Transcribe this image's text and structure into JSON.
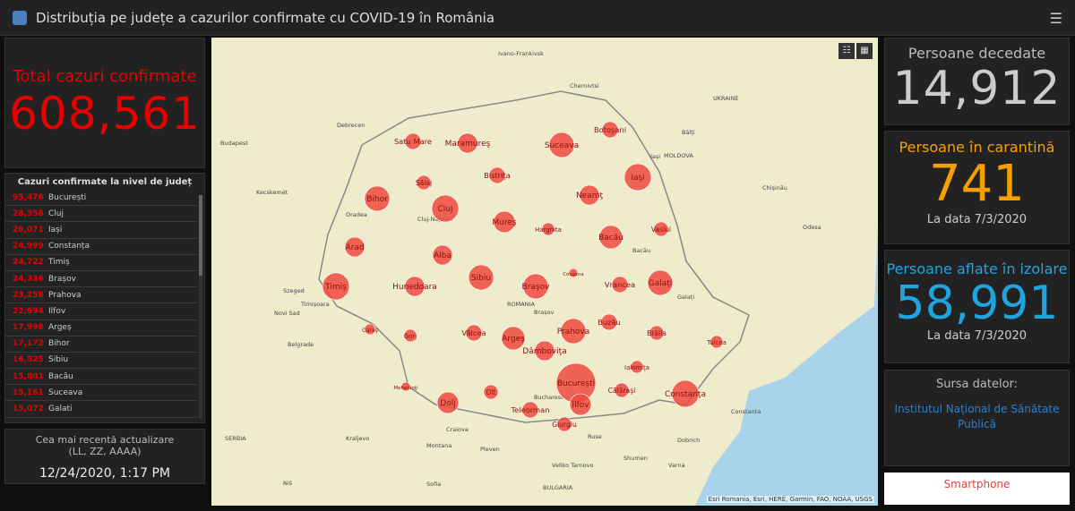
{
  "header": {
    "title": "Distribuția pe județe a cazurilor confirmate cu COVID-19 în România"
  },
  "total": {
    "label": "Total cazuri confirmate",
    "value": "608,561"
  },
  "county_list": {
    "title": "Cazuri confirmate la nivel de județ",
    "rows": [
      {
        "value": "95,476",
        "name": "București"
      },
      {
        "value": "28,358",
        "name": "Cluj"
      },
      {
        "value": "26,071",
        "name": "Iași"
      },
      {
        "value": "24,999",
        "name": "Constanța"
      },
      {
        "value": "24,722",
        "name": "Timiș"
      },
      {
        "value": "24,336",
        "name": "Brașov"
      },
      {
        "value": "23,258",
        "name": "Prahova"
      },
      {
        "value": "22,694",
        "name": "Ilfov"
      },
      {
        "value": "17,998",
        "name": "Argeș"
      },
      {
        "value": "17,172",
        "name": "Bihor"
      },
      {
        "value": "16,525",
        "name": "Sibiu"
      },
      {
        "value": "15,801",
        "name": "Bacău"
      },
      {
        "value": "15,161",
        "name": "Suceava"
      },
      {
        "value": "15,072",
        "name": "Galati"
      }
    ]
  },
  "update": {
    "label1": "Cea mai recentă actualizare",
    "label2": "(LL, ZZ, AAAA)",
    "value": "12/24/2020, 1:17 PM"
  },
  "deaths": {
    "label": "Persoane decedate",
    "value": "14,912"
  },
  "quarantine": {
    "label": "Persoane în carantină",
    "value": "741",
    "date": "La data 7/3/2020"
  },
  "isolation": {
    "label": "Persoane aflate în izolare",
    "value": "58,991",
    "date": "La data 7/3/2020"
  },
  "source": {
    "label": "Sursa datelor:",
    "link": "Institutul Național de Sănătate Publică"
  },
  "smartphone": "Smartphone",
  "map": {
    "attribution": "Esri Romania, Esri, HERE, Garmin, FAO, NOAA, USGS",
    "marker_color": "#f04a3e",
    "markers": [
      "Bucureşti",
      "Cluj",
      "Iaşi",
      "Constanţa",
      "Timiş",
      "Braşov",
      "Prahova",
      "Ilfov",
      "Argeş",
      "Bihor",
      "Sibiu",
      "Bacău",
      "Suceava",
      "Galaţi",
      "Mureş",
      "Alba",
      "Dolj",
      "Arad",
      "Hunedoara",
      "Neamţ",
      "Dâmboviţa",
      "Maramureş",
      "Satu Mare",
      "Botoşani",
      "Vaslui",
      "Vrancea",
      "Buzău",
      "Brăila",
      "Vâlcea",
      "Olt",
      "Teleorman",
      "Giurgiu",
      "Călăraşi",
      "Ialomiţa",
      "Tulcea",
      "Bistriţa",
      "Sălaj",
      "Harghita",
      "Covasna",
      "Caraş",
      "Mehedinţi",
      "Gorj"
    ],
    "places": [
      "Budapest",
      "Debrecen",
      "Kecskemét",
      "Szeged",
      "Novi Sad",
      "Belgrade",
      "Kraljevo",
      "Niš",
      "Sofia",
      "Pleven",
      "Montana",
      "Veliko Tarnovo",
      "Ruse",
      "Varna",
      "Dobrich",
      "Shumen",
      "Constanta",
      "Chișinău",
      "Odesa",
      "MOLDOVA",
      "ROMANIA",
      "BULGARIA",
      "SERBIA",
      "UKRAINE",
      "Ivano-Frankivsk",
      "Chernivtsi",
      "Bălți",
      "Craiova",
      "Bacău",
      "Cluj-Napoca",
      "Oradea",
      "Timișoara",
      "Brașov",
      "Bucharest",
      "Galați",
      "Iași"
    ]
  }
}
